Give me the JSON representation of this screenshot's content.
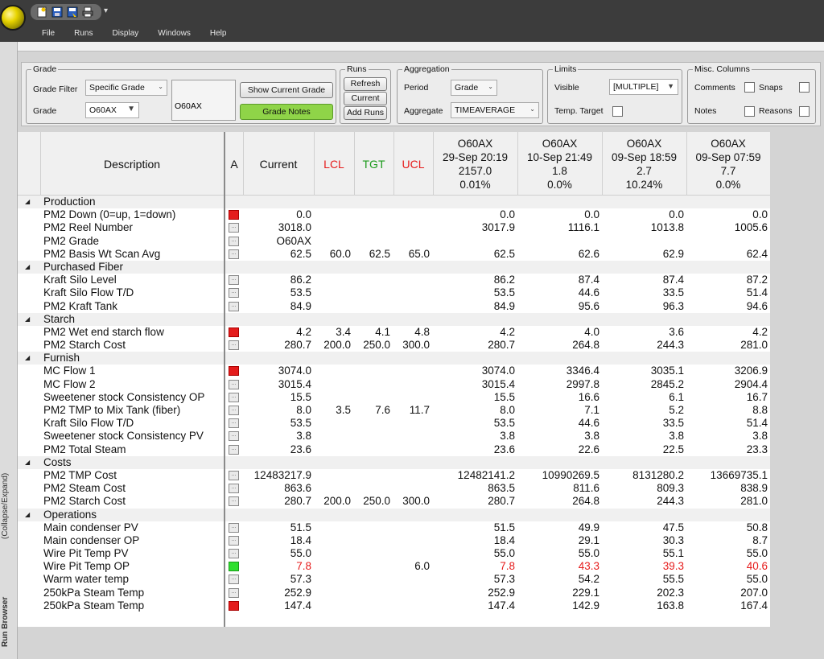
{
  "menu": [
    "File",
    "Runs",
    "Display",
    "Windows",
    "Help"
  ],
  "left_tab": {
    "collapse": "(Collapse/Expand)",
    "run_browser": "Run Browser"
  },
  "grade": {
    "legend": "Grade",
    "filter_label": "Grade Filter",
    "filter_value": "Specific Grade",
    "grade_label": "Grade",
    "grade_value": "O60AX",
    "box_value": "O60AX",
    "show_current": "Show Current Grade",
    "notes": "Grade Notes"
  },
  "runs": {
    "legend": "Runs",
    "refresh": "Refresh",
    "current": "Current",
    "add": "Add Runs"
  },
  "aggregation": {
    "legend": "Aggregation",
    "period_label": "Period",
    "period_value": "Grade",
    "aggregate_label": "Aggregate",
    "aggregate_value": "TIMEAVERAGE"
  },
  "limits": {
    "legend": "Limits",
    "visible_label": "Visible",
    "visible_value": "[MULTIPLE]",
    "temp_target": "Temp. Target"
  },
  "misc": {
    "legend": "Misc. Columns",
    "comments": "Comments",
    "snaps": "Snaps",
    "notes": "Notes",
    "reasons": "Reasons"
  },
  "columns": {
    "description": "Description",
    "a": "A",
    "current": "Current",
    "lcl": "LCL",
    "tgt": "TGT",
    "ucl": "UCL"
  },
  "colors": {
    "lcl": "#e61c1c",
    "tgt": "#1a9a1a",
    "ucl": "#e61c1c",
    "accent_green": "#8fd448"
  },
  "runs_cols": [
    {
      "grade": "O60AX",
      "date": "29-Sep 20:19",
      "val": "2157.0",
      "pct": "0.01%"
    },
    {
      "grade": "O60AX",
      "date": "10-Sep 21:49",
      "val": "1.8",
      "pct": "0.0%"
    },
    {
      "grade": "O60AX",
      "date": "09-Sep 18:59",
      "val": "2.7",
      "pct": "10.24%"
    },
    {
      "grade": "O60AX",
      "date": "09-Sep 07:59",
      "val": "7.7",
      "pct": "0.0%"
    }
  ],
  "rows": [
    {
      "type": "cat",
      "label": "Production"
    },
    {
      "type": "item",
      "desc": "PM2 Down (0=up, 1=down)",
      "flag": "red",
      "cur": "0.0",
      "lcl": "",
      "tgt": "",
      "ucl": "",
      "r": [
        "0.0",
        "0.0",
        "0.0",
        "0.0"
      ]
    },
    {
      "type": "item",
      "desc": "PM2 Reel Number",
      "flag": "none",
      "cur": "3018.0",
      "lcl": "",
      "tgt": "",
      "ucl": "",
      "r": [
        "3017.9",
        "1116.1",
        "1013.8",
        "1005.6"
      ]
    },
    {
      "type": "item",
      "desc": "PM2 Grade",
      "flag": "none",
      "cur": "O60AX",
      "lcl": "",
      "tgt": "",
      "ucl": "",
      "r": [
        "",
        "",
        "",
        ""
      ]
    },
    {
      "type": "item",
      "desc": "PM2 Basis Wt Scan Avg",
      "flag": "none",
      "cur": "62.5",
      "lcl": "60.0",
      "tgt": "62.5",
      "ucl": "65.0",
      "r": [
        "62.5",
        "62.6",
        "62.9",
        "62.4"
      ]
    },
    {
      "type": "cat",
      "label": "Purchased Fiber"
    },
    {
      "type": "item",
      "desc": "Kraft Silo Level",
      "flag": "none",
      "cur": "86.2",
      "lcl": "",
      "tgt": "",
      "ucl": "",
      "r": [
        "86.2",
        "87.4",
        "87.4",
        "87.2"
      ]
    },
    {
      "type": "item",
      "desc": "Kraft Silo Flow T/D",
      "flag": "none",
      "cur": "53.5",
      "lcl": "",
      "tgt": "",
      "ucl": "",
      "r": [
        "53.5",
        "44.6",
        "33.5",
        "51.4"
      ]
    },
    {
      "type": "item",
      "desc": "PM2 Kraft Tank",
      "flag": "none",
      "cur": "84.9",
      "lcl": "",
      "tgt": "",
      "ucl": "",
      "r": [
        "84.9",
        "95.6",
        "96.3",
        "94.6"
      ]
    },
    {
      "type": "cat",
      "label": "Starch"
    },
    {
      "type": "item",
      "desc": "PM2 Wet end starch flow",
      "flag": "red",
      "cur": "4.2",
      "lcl": "3.4",
      "tgt": "4.1",
      "ucl": "4.8",
      "r": [
        "4.2",
        "4.0",
        "3.6",
        "4.2"
      ]
    },
    {
      "type": "item",
      "desc": "PM2 Starch Cost",
      "flag": "none",
      "cur": "280.7",
      "lcl": "200.0",
      "tgt": "250.0",
      "ucl": "300.0",
      "r": [
        "280.7",
        "264.8",
        "244.3",
        "281.0"
      ]
    },
    {
      "type": "cat",
      "label": "Furnish"
    },
    {
      "type": "item",
      "desc": "MC Flow 1",
      "flag": "red",
      "cur": "3074.0",
      "lcl": "",
      "tgt": "",
      "ucl": "",
      "r": [
        "3074.0",
        "3346.4",
        "3035.1",
        "3206.9"
      ]
    },
    {
      "type": "item",
      "desc": "MC Flow 2",
      "flag": "none",
      "cur": "3015.4",
      "lcl": "",
      "tgt": "",
      "ucl": "",
      "r": [
        "3015.4",
        "2997.8",
        "2845.2",
        "2904.4"
      ]
    },
    {
      "type": "item",
      "desc": "Sweetener stock Consistency OP",
      "flag": "none",
      "cur": "15.5",
      "lcl": "",
      "tgt": "",
      "ucl": "",
      "r": [
        "15.5",
        "16.6",
        "6.1",
        "16.7"
      ]
    },
    {
      "type": "item",
      "desc": "PM2 TMP to Mix Tank (fiber)",
      "flag": "none",
      "cur": "8.0",
      "lcl": "3.5",
      "tgt": "7.6",
      "ucl": "11.7",
      "r": [
        "8.0",
        "7.1",
        "5.2",
        "8.8"
      ]
    },
    {
      "type": "item",
      "desc": "Kraft Silo Flow T/D",
      "flag": "none",
      "cur": "53.5",
      "lcl": "",
      "tgt": "",
      "ucl": "",
      "r": [
        "53.5",
        "44.6",
        "33.5",
        "51.4"
      ]
    },
    {
      "type": "item",
      "desc": "Sweetener stock Consistency PV",
      "flag": "none",
      "cur": "3.8",
      "lcl": "",
      "tgt": "",
      "ucl": "",
      "r": [
        "3.8",
        "3.8",
        "3.8",
        "3.8"
      ]
    },
    {
      "type": "item",
      "desc": "PM2 Total Steam",
      "flag": "none",
      "cur": "23.6",
      "lcl": "",
      "tgt": "",
      "ucl": "",
      "r": [
        "23.6",
        "22.6",
        "22.5",
        "23.3"
      ]
    },
    {
      "type": "cat",
      "label": "Costs"
    },
    {
      "type": "item",
      "desc": "PM2 TMP Cost",
      "flag": "none",
      "cur": "12483217.9",
      "lcl": "",
      "tgt": "",
      "ucl": "",
      "r": [
        "12482141.2",
        "10990269.5",
        "8131280.2",
        "13669735.1"
      ]
    },
    {
      "type": "item",
      "desc": "PM2 Steam Cost",
      "flag": "none",
      "cur": "863.6",
      "lcl": "",
      "tgt": "",
      "ucl": "",
      "r": [
        "863.5",
        "811.6",
        "809.3",
        "838.9"
      ]
    },
    {
      "type": "item",
      "desc": "PM2 Starch Cost",
      "flag": "none",
      "cur": "280.7",
      "lcl": "200.0",
      "tgt": "250.0",
      "ucl": "300.0",
      "r": [
        "280.7",
        "264.8",
        "244.3",
        "281.0"
      ]
    },
    {
      "type": "cat",
      "label": "Operations"
    },
    {
      "type": "item",
      "desc": "Main condenser PV",
      "flag": "none",
      "cur": "51.5",
      "lcl": "",
      "tgt": "",
      "ucl": "",
      "r": [
        "51.5",
        "49.9",
        "47.5",
        "50.8"
      ]
    },
    {
      "type": "item",
      "desc": "Main condenser OP",
      "flag": "none",
      "cur": "18.4",
      "lcl": "",
      "tgt": "",
      "ucl": "",
      "r": [
        "18.4",
        "29.1",
        "30.3",
        "8.7"
      ]
    },
    {
      "type": "item",
      "desc": "Wire Pit Temp PV",
      "flag": "none",
      "cur": "55.0",
      "lcl": "",
      "tgt": "",
      "ucl": "",
      "r": [
        "55.0",
        "55.0",
        "55.1",
        "55.0"
      ]
    },
    {
      "type": "item",
      "desc": "Wire Pit Temp OP",
      "flag": "green",
      "cur": "7.8",
      "lcl": "",
      "tgt": "",
      "ucl": "6.0",
      "r": [
        "7.8",
        "43.3",
        "39.3",
        "40.6"
      ],
      "red": true
    },
    {
      "type": "item",
      "desc": "Warm water temp",
      "flag": "none",
      "cur": "57.3",
      "lcl": "",
      "tgt": "",
      "ucl": "",
      "r": [
        "57.3",
        "54.2",
        "55.5",
        "55.0"
      ]
    },
    {
      "type": "item",
      "desc": "250kPa Steam Temp",
      "flag": "none",
      "cur": "252.9",
      "lcl": "",
      "tgt": "",
      "ucl": "",
      "r": [
        "252.9",
        "229.1",
        "202.3",
        "207.0"
      ]
    },
    {
      "type": "item",
      "desc": "250kPa Steam Temp",
      "flag": "red",
      "cur": "147.4",
      "lcl": "",
      "tgt": "",
      "ucl": "",
      "r": [
        "147.4",
        "142.9",
        "163.8",
        "167.4"
      ]
    }
  ]
}
